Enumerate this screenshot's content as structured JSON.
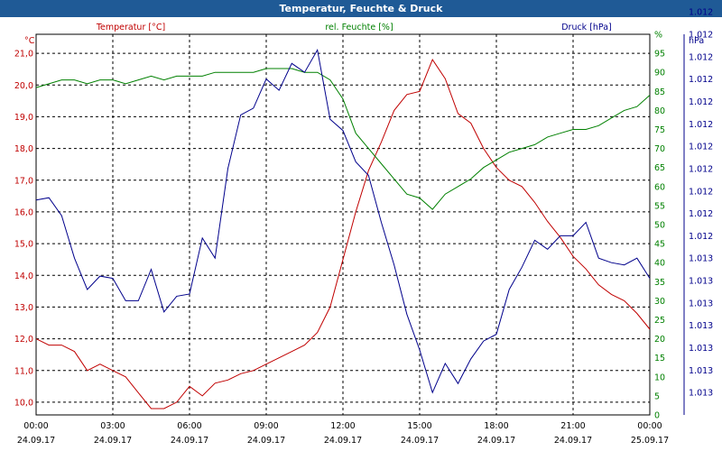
{
  "window": {
    "title": "Temperatur, Feuchte & Druck"
  },
  "colors": {
    "temperature": "#c00000",
    "humidity": "#008000",
    "pressure": "#00008b",
    "grid": "#000000",
    "title_bar": "#1f5a96"
  },
  "chart_data": {
    "type": "line",
    "title": "Temperatur, Feuchte & Druck",
    "x_ticks": [
      {
        "time": "00:00",
        "date": "24.09.17"
      },
      {
        "time": "03:00",
        "date": "24.09.17"
      },
      {
        "time": "06:00",
        "date": "24.09.17"
      },
      {
        "time": "09:00",
        "date": "24.09.17"
      },
      {
        "time": "12:00",
        "date": "24.09.17"
      },
      {
        "time": "15:00",
        "date": "24.09.17"
      },
      {
        "time": "18:00",
        "date": "24.09.17"
      },
      {
        "time": "21:00",
        "date": "24.09.17"
      },
      {
        "time": "00:00",
        "date": "25.09.17"
      }
    ],
    "x_range_hours": [
      0,
      24
    ],
    "axes": {
      "temperature": {
        "unit": "°C",
        "range": [
          9.6,
          21.6
        ],
        "ticks": [
          "10,0",
          "11,0",
          "12,0",
          "13,0",
          "14,0",
          "15,0",
          "16,0",
          "17,0",
          "18,0",
          "19,0",
          "20,0",
          "21,0"
        ],
        "tick_values": [
          10,
          11,
          12,
          13,
          14,
          15,
          16,
          17,
          18,
          19,
          20,
          21
        ]
      },
      "humidity": {
        "unit": "%",
        "range": [
          0,
          100
        ],
        "ticks": [
          "0",
          "5",
          "10",
          "15",
          "20",
          "25",
          "30",
          "35",
          "40",
          "45",
          "50",
          "55",
          "60",
          "65",
          "70",
          "75",
          "80",
          "85",
          "90",
          "95",
          "%"
        ]
      },
      "pressure": {
        "unit": "hPa",
        "range": [
          0,
          17
        ],
        "ticks": [
          "1.012",
          "1.012",
          "1.012",
          "1.012",
          "1.012",
          "1.012",
          "1.012",
          "1.012",
          "1.012",
          "1.012",
          "1.012",
          "1.013",
          "1.013",
          "1.013",
          "1.013",
          "1.013",
          "1.013",
          "1.013"
        ]
      }
    },
    "series": [
      {
        "name": "Temperatur [°C]",
        "axis": "temperature",
        "x": [
          0,
          0.5,
          1,
          1.5,
          2,
          2.5,
          3,
          3.5,
          4,
          4.5,
          5,
          5.5,
          6,
          6.5,
          7,
          7.5,
          8,
          8.5,
          9,
          9.5,
          10,
          10.5,
          11,
          11.5,
          12,
          12.5,
          13,
          13.5,
          14,
          14.5,
          15,
          15.5,
          16,
          16.5,
          17,
          17.5,
          18,
          18.5,
          19,
          19.5,
          20,
          20.5,
          21,
          21.5,
          22,
          22.5,
          23,
          23.5,
          24
        ],
        "values": [
          12.0,
          11.8,
          11.8,
          11.6,
          11.0,
          11.2,
          11.0,
          10.8,
          10.3,
          9.8,
          9.8,
          10.0,
          10.5,
          10.2,
          10.6,
          10.7,
          10.9,
          11.0,
          11.2,
          11.4,
          11.6,
          11.8,
          12.2,
          13.0,
          14.5,
          16.0,
          17.3,
          18.2,
          19.2,
          19.7,
          19.8,
          20.8,
          20.2,
          19.1,
          18.8,
          18.0,
          17.4,
          17.0,
          16.8,
          16.3,
          15.7,
          15.2,
          14.6,
          14.2,
          13.7,
          13.4,
          13.2,
          12.8,
          12.3
        ]
      },
      {
        "name": "rel. Feuchte [%]",
        "axis": "humidity",
        "x": [
          0,
          0.5,
          1,
          1.5,
          2,
          2.5,
          3,
          3.5,
          4,
          4.5,
          5,
          5.5,
          6,
          6.5,
          7,
          7.5,
          8,
          8.5,
          9,
          9.5,
          10,
          10.5,
          11,
          11.5,
          12,
          12.5,
          13,
          13.5,
          14,
          14.5,
          15,
          15.5,
          16,
          16.5,
          17,
          17.5,
          18,
          18.5,
          19,
          19.5,
          20,
          20.5,
          21,
          21.5,
          22,
          22.5,
          23,
          23.5,
          24
        ],
        "values": [
          86,
          87,
          88,
          88,
          87,
          88,
          88,
          87,
          88,
          89,
          88,
          89,
          89,
          89,
          90,
          90,
          90,
          90,
          91,
          91,
          91,
          90,
          90,
          88,
          83,
          74,
          70,
          66,
          62,
          58,
          57,
          54,
          58,
          60,
          62,
          65,
          67,
          69,
          70,
          71,
          73,
          74,
          75,
          75,
          76,
          78,
          80,
          81,
          84
        ]
      },
      {
        "name": "Druck [hPa]",
        "axis": "pressure",
        "x": [
          0,
          0.5,
          1,
          1.5,
          2,
          2.5,
          3,
          3.5,
          4,
          4.5,
          5,
          5.5,
          6,
          6.5,
          7,
          7.5,
          8,
          8.5,
          9,
          9.5,
          10,
          10.5,
          11,
          11.5,
          12,
          12.5,
          13,
          13.5,
          14,
          14.5,
          15,
          15.5,
          16,
          16.5,
          17,
          17.5,
          18,
          18.5,
          19,
          19.5,
          20,
          20.5,
          21,
          21.5,
          22,
          22.5,
          23,
          23.5,
          24
        ],
        "values": [
          9.6,
          9.7,
          8.9,
          7.0,
          5.6,
          6.2,
          6.1,
          5.1,
          5.1,
          6.5,
          4.6,
          5.3,
          5.4,
          7.9,
          7.0,
          11.0,
          13.4,
          13.7,
          15.0,
          14.5,
          15.7,
          15.3,
          16.3,
          13.2,
          12.7,
          11.3,
          10.7,
          8.6,
          6.7,
          4.5,
          2.9,
          1.0,
          2.3,
          1.4,
          2.5,
          3.3,
          3.6,
          5.6,
          6.6,
          7.8,
          7.4,
          8.0,
          8.0,
          8.6,
          7.0,
          6.8,
          6.7,
          7.0,
          6.1
        ]
      }
    ],
    "legend": [
      "Temperatur [°C]",
      "rel. Feuchte [%]",
      "Druck [hPa]"
    ],
    "grid": true
  }
}
